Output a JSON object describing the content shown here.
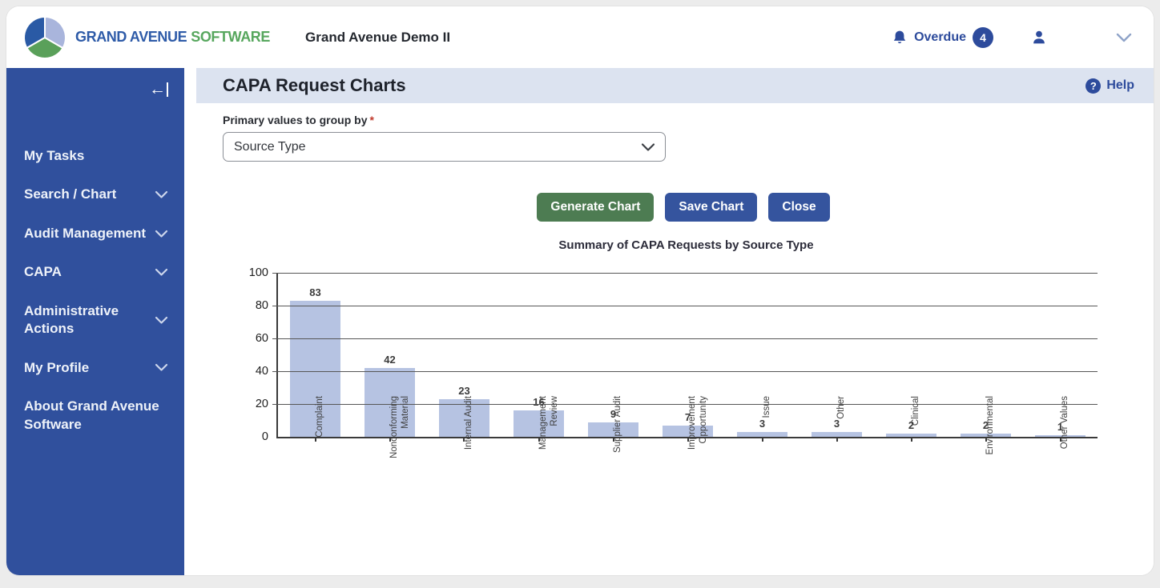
{
  "topbar": {
    "brand": {
      "primary": "GRAND AVENUE",
      "secondary": "SOFTWARE"
    },
    "app_title": "Grand Avenue Demo II",
    "overdue": {
      "label": "Overdue",
      "count": "4"
    }
  },
  "sidebar": {
    "items": [
      {
        "label": "My Tasks",
        "expandable": false
      },
      {
        "label": "Search / Chart",
        "expandable": true
      },
      {
        "label": "Audit Management",
        "expandable": true
      },
      {
        "label": "CAPA",
        "expandable": true
      },
      {
        "label": "Administrative Actions",
        "expandable": true
      },
      {
        "label": "My Profile",
        "expandable": true
      },
      {
        "label": "About Grand Avenue Software",
        "expandable": false
      }
    ]
  },
  "page": {
    "title": "CAPA Request Charts",
    "help_label": "Help",
    "group_by_label": "Primary values to group by",
    "required_marker": "*",
    "group_by_value": "Source Type",
    "buttons": {
      "generate": "Generate Chart",
      "save": "Save Chart",
      "close": "Close"
    }
  },
  "chart_data": {
    "type": "bar",
    "title": "Summary of CAPA Requests by Source Type",
    "categories": [
      "Complaint",
      "Nonconforming\nMaterial",
      "Internal Audit",
      "Management\nReview",
      "Supplier Audit",
      "Improvement\nOpportunity",
      "Issue",
      "Other",
      "Clinical",
      "Environmental",
      "Other Values"
    ],
    "values": [
      83,
      42,
      23,
      16,
      9,
      7,
      3,
      3,
      2,
      2,
      1
    ],
    "xlabel": "",
    "ylabel": "",
    "ylim": [
      0,
      100
    ],
    "yticks": [
      0,
      20,
      40,
      60,
      80,
      100
    ],
    "grid": true,
    "legend": "none",
    "bar_color": "#b6c3e2"
  },
  "colors": {
    "accent_blue": "#2d4b9c",
    "sidebar_blue": "#30509d",
    "header_strip": "#dce3f0",
    "button_green": "#4d7c52",
    "button_blue": "#35549e",
    "bar_fill": "#b6c3e2",
    "brand_blue": "#2e5ba8",
    "brand_green": "#57a75e"
  },
  "icons": {
    "notification": "bell",
    "user": "person-silhouette",
    "window": "chevron-down",
    "help": "question-circle",
    "sidebar_collapse": "arrow-left-to-bar",
    "menu_expand": "chevron-down",
    "select_expand": "chevron-down",
    "logo": "three-segment-circle"
  }
}
